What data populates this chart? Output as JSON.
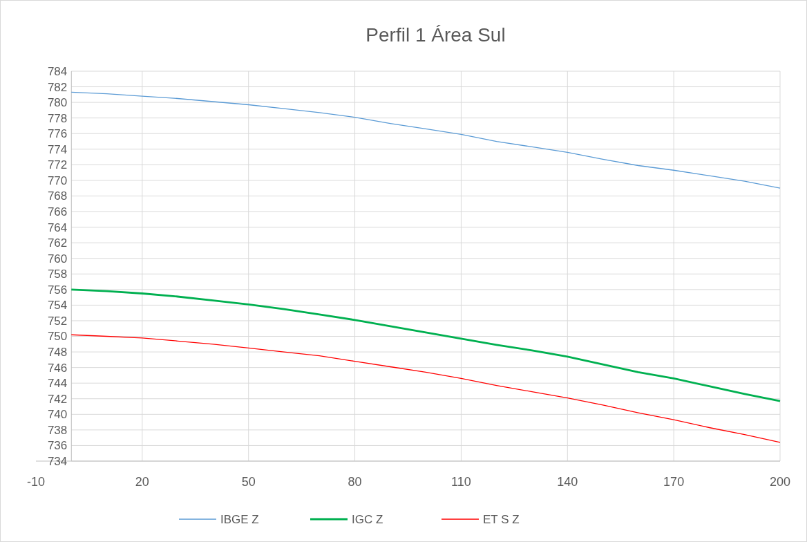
{
  "chart_data": {
    "type": "line",
    "title": "Perfil 1 Área Sul",
    "x": [
      0,
      10,
      20,
      30,
      40,
      50,
      60,
      70,
      80,
      90,
      100,
      110,
      120,
      130,
      140,
      150,
      160,
      170,
      180,
      190,
      200
    ],
    "series": [
      {
        "name": "IBGE Z",
        "color": "#5b9bd5",
        "values": [
          781.3,
          781.1,
          780.8,
          780.5,
          780.1,
          779.7,
          779.2,
          778.7,
          778.1,
          777.3,
          776.6,
          775.9,
          775.0,
          774.3,
          773.6,
          772.7,
          771.9,
          771.3,
          770.6,
          769.9,
          769.0
        ]
      },
      {
        "name": "IGC Z",
        "color": "#00b050",
        "values": [
          756.0,
          755.8,
          755.5,
          755.1,
          754.6,
          754.1,
          753.5,
          752.8,
          752.1,
          751.3,
          750.5,
          749.7,
          748.9,
          748.2,
          747.4,
          746.4,
          745.4,
          744.6,
          743.6,
          742.6,
          741.7
        ]
      },
      {
        "name": "ET S Z",
        "color": "#ff0000",
        "values": [
          750.2,
          750.0,
          749.8,
          749.4,
          749.0,
          748.5,
          748.0,
          747.5,
          746.8,
          746.1,
          745.4,
          744.6,
          743.7,
          742.9,
          742.1,
          741.2,
          740.2,
          739.3,
          738.3,
          737.4,
          736.4
        ]
      }
    ],
    "xlim": [
      -10,
      200
    ],
    "xticks": [
      -10,
      20,
      50,
      80,
      110,
      140,
      170,
      200
    ],
    "ylim": [
      734,
      784
    ],
    "yticks": [
      734,
      736,
      738,
      740,
      742,
      744,
      746,
      748,
      750,
      752,
      754,
      756,
      758,
      760,
      762,
      764,
      766,
      768,
      770,
      772,
      774,
      776,
      778,
      780,
      782,
      784
    ],
    "grid": true,
    "legend": "bottom",
    "marker": "none",
    "line_style": "solid"
  }
}
